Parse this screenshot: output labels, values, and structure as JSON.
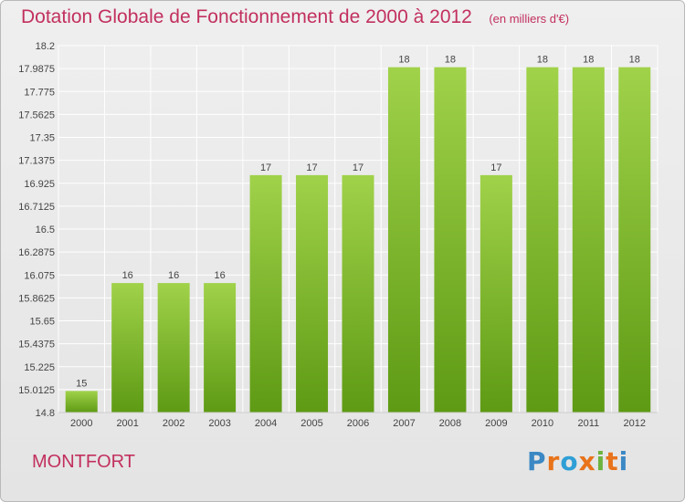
{
  "header": {
    "title": "Dotation Globale de Fonctionnement de 2000 à 2012",
    "subtitle": "(en milliers d'€)"
  },
  "footer": {
    "commune": "MONTFORT",
    "logo_text": "Proxiti",
    "logo_colors": [
      "#3b88c4",
      "#e8731a",
      "#2f9fd6",
      "#e8731a",
      "#6cb33f",
      "#e8731a",
      "#3b88c4"
    ]
  },
  "colors": {
    "bar_top": "#a0d24a",
    "bar_bottom": "#5e9a14",
    "grid": "#ffffff",
    "title": "#c2305e",
    "label": "#444444"
  },
  "chart_data": {
    "type": "bar",
    "categories": [
      "2000",
      "2001",
      "2002",
      "2003",
      "2004",
      "2005",
      "2006",
      "2007",
      "2008",
      "2009",
      "2010",
      "2011",
      "2012"
    ],
    "values": [
      15,
      16,
      16,
      16,
      17,
      17,
      17,
      18,
      18,
      17,
      18,
      18,
      18
    ],
    "data_labels": [
      "15",
      "16",
      "16",
      "16",
      "17",
      "17",
      "17",
      "18",
      "18",
      "17",
      "18",
      "18",
      "18"
    ],
    "ylim": [
      14.8,
      18.2
    ],
    "yticks": [
      "14.8",
      "15.0125",
      "15.225",
      "15.4375",
      "15.65",
      "15.8625",
      "16.075",
      "16.2875",
      "16.5",
      "16.7125",
      "16.925",
      "17.1375",
      "17.35",
      "17.5625",
      "17.775",
      "17.9875",
      "18.2"
    ],
    "grid": true,
    "title": "Dotation Globale de Fonctionnement de 2000 à 2012",
    "xlabel": "",
    "ylabel": ""
  }
}
